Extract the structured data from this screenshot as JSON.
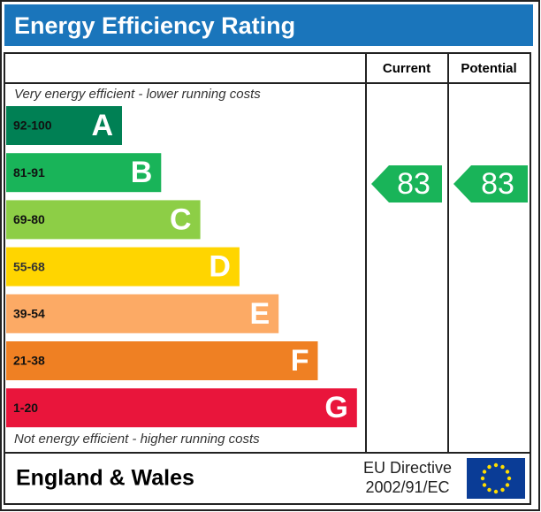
{
  "title": "Energy Efficiency Rating",
  "headers": {
    "current": "Current",
    "potential": "Potential"
  },
  "top_note": "Very energy efficient - lower running costs",
  "bottom_note": "Not energy efficient - higher running costs",
  "bands": [
    {
      "range": "92-100",
      "letter": "A",
      "color": "#008054"
    },
    {
      "range": "81-91",
      "letter": "B",
      "color": "#19b459"
    },
    {
      "range": "69-80",
      "letter": "C",
      "color": "#8dce46"
    },
    {
      "range": "55-68",
      "letter": "D",
      "color": "#ffd500"
    },
    {
      "range": "39-54",
      "letter": "E",
      "color": "#fcaa65"
    },
    {
      "range": "21-38",
      "letter": "F",
      "color": "#ef8023"
    },
    {
      "range": "1-20",
      "letter": "G",
      "color": "#e9153b"
    }
  ],
  "current": {
    "value": 83,
    "color": "#19b459"
  },
  "potential": {
    "value": 83,
    "color": "#19b459"
  },
  "footer": {
    "region": "England & Wales",
    "directive_line1": "EU Directive",
    "directive_line2": "2002/91/EC"
  }
}
